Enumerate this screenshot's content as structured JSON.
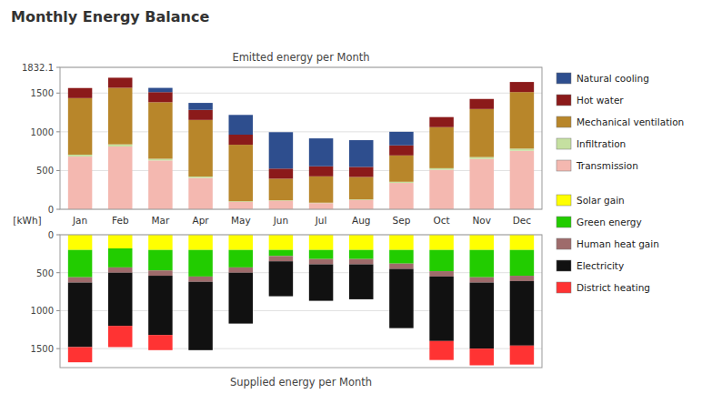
{
  "title": "Monthly Energy Balance",
  "chart_data": [
    {
      "type": "bar",
      "stacked": true,
      "grid": true,
      "title": "Emitted energy per Month",
      "ylabel": "[kWh]",
      "categories": [
        "Jan",
        "Feb",
        "Mar",
        "Apr",
        "May",
        "Jun",
        "Jul",
        "Aug",
        "Sep",
        "Oct",
        "Nov",
        "Dec"
      ],
      "ylim": [
        0,
        1832.1
      ],
      "yticks": [
        0,
        500,
        1000,
        1500,
        1832.1
      ],
      "series": [
        {
          "name": "Transmission",
          "color": "#f4b8b0",
          "values": [
            680,
            810,
            630,
            405,
            95,
            110,
            80,
            120,
            340,
            510,
            650,
            755
          ]
        },
        {
          "name": "Infiltration",
          "color": "#c5e0a0",
          "values": [
            25,
            28,
            22,
            18,
            8,
            5,
            5,
            7,
            15,
            20,
            24,
            28
          ]
        },
        {
          "name": "Mechanical ventilation",
          "color": "#b8862a",
          "values": [
            730,
            730,
            730,
            730,
            730,
            280,
            340,
            290,
            340,
            530,
            620,
            730
          ]
        },
        {
          "name": "Hot water",
          "color": "#8b1a1a",
          "values": [
            130,
            130,
            130,
            130,
            130,
            130,
            130,
            130,
            130,
            130,
            130,
            130
          ]
        },
        {
          "name": "Natural cooling",
          "color": "#2e4e8e",
          "values": [
            0,
            0,
            55,
            90,
            255,
            470,
            360,
            345,
            175,
            0,
            0,
            0
          ]
        }
      ]
    },
    {
      "type": "bar",
      "stacked": true,
      "grid": true,
      "tick_labels": "y",
      "xlabel": "Supplied energy per Month",
      "categories": [
        "Jan",
        "Feb",
        "Mar",
        "Apr",
        "May",
        "Jun",
        "Jul",
        "Aug",
        "Sep",
        "Oct",
        "Nov",
        "Dec"
      ],
      "ylim": [
        1750,
        0
      ],
      "yticks": [
        0,
        500,
        1000,
        1500
      ],
      "series": [
        {
          "name": "Solar gain",
          "color": "#ffff00",
          "values": [
            200,
            180,
            200,
            200,
            200,
            200,
            200,
            200,
            200,
            200,
            200,
            200
          ]
        },
        {
          "name": "Green energy",
          "color": "#22cc00",
          "values": [
            360,
            250,
            270,
            350,
            230,
            80,
            120,
            120,
            180,
            280,
            360,
            340
          ]
        },
        {
          "name": "Human heat gain",
          "color": "#9e6b6b",
          "values": [
            70,
            70,
            70,
            70,
            70,
            70,
            70,
            70,
            70,
            70,
            70,
            70
          ]
        },
        {
          "name": "Electricity",
          "color": "#111111",
          "values": [
            850,
            700,
            780,
            900,
            670,
            460,
            480,
            460,
            780,
            850,
            870,
            850
          ]
        },
        {
          "name": "District heating",
          "color": "#ff3333",
          "values": [
            200,
            280,
            200,
            0,
            0,
            0,
            0,
            0,
            0,
            250,
            220,
            250
          ]
        }
      ]
    }
  ]
}
